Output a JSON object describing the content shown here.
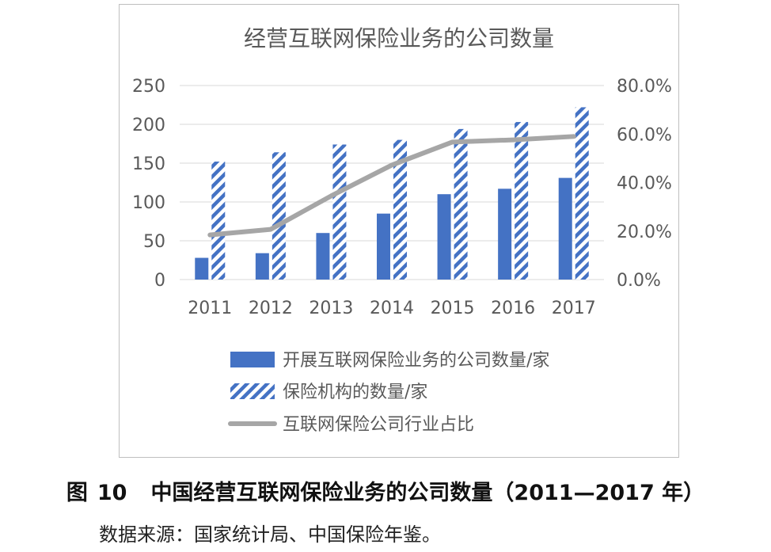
{
  "chart_data": {
    "type": "bar",
    "title": "经营互联网保险业务的公司数量",
    "categories": [
      "2011",
      "2012",
      "2013",
      "2014",
      "2015",
      "2016",
      "2017"
    ],
    "ylim": [
      0,
      250
    ],
    "yticks": [
      "0",
      "50",
      "100",
      "150",
      "200",
      "250"
    ],
    "ylim_right": [
      0,
      0.8
    ],
    "yticks_right": [
      "0.0%",
      "20.0%",
      "40.0%",
      "60.0%",
      "80.0%"
    ],
    "grid": true,
    "legend_position": "bottom",
    "series": [
      {
        "name": "开展互联网保险业务的公司数量/家",
        "kind": "bar",
        "pattern": "solid",
        "color": "#4472c4",
        "values": [
          28,
          34,
          60,
          85,
          110,
          117,
          131
        ]
      },
      {
        "name": "保险机构的数量/家",
        "kind": "bar",
        "pattern": "hatched",
        "color": "#4472c4",
        "values": [
          152,
          164,
          174,
          180,
          194,
          203,
          222
        ]
      },
      {
        "name": "互联网保险公司行业占比",
        "kind": "line",
        "axis": "right",
        "color": "#a6a6a6",
        "values": [
          0.184,
          0.207,
          0.345,
          0.472,
          0.567,
          0.576,
          0.59
        ]
      }
    ]
  },
  "caption": {
    "label": "图",
    "number": "10",
    "text": "中国经营互联网保险业务的公司数量（2011—2017 年）"
  },
  "source": "数据来源：国家统计局、中国保险年鉴。"
}
